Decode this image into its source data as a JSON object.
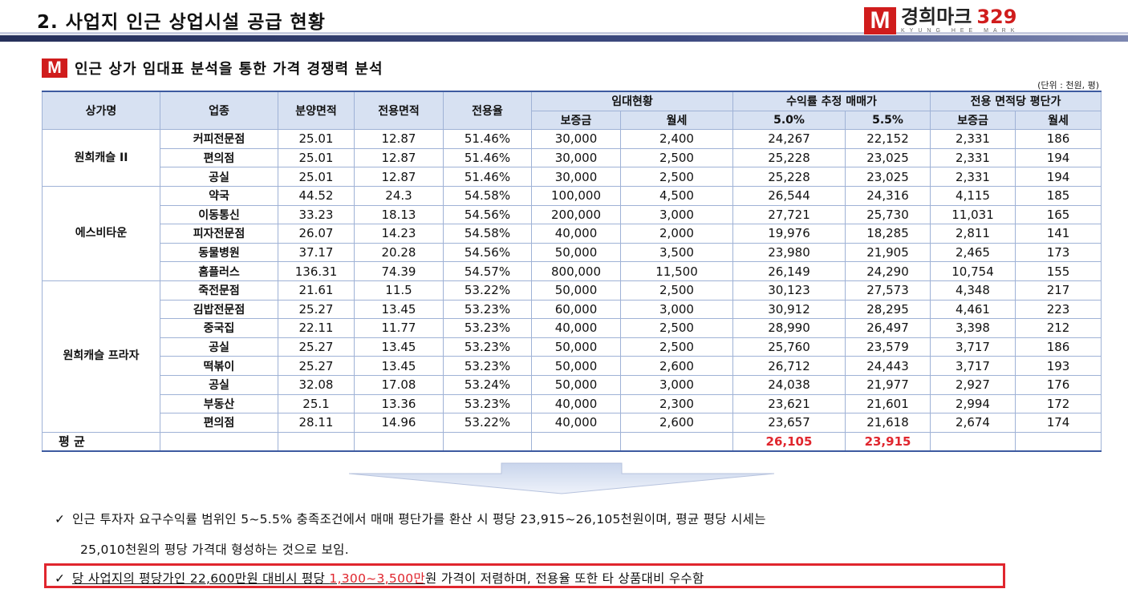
{
  "header": {
    "title": "2. 사업지 인근 상업시설 공급 현황",
    "logo_mark": "M",
    "logo_name": "경희마크",
    "logo_number": "329",
    "logo_sub": "KYUNG HEE MARK"
  },
  "section": {
    "mark": "M",
    "title": "인근 상가 임대표 분석을 통한 가격 경쟁력 분석",
    "unit": "(단위 : 천원, 평)"
  },
  "table": {
    "headers": {
      "store": "상가명",
      "business": "업종",
      "sale_area": "분양면적",
      "exclusive_area": "전용면적",
      "exclusive_rate": "전용율",
      "lease_status": "임대현황",
      "deposit": "보증금",
      "monthly_rent": "월세",
      "estimated_price": "수익률 추정 매매가",
      "rate_5_0": "5.0%",
      "rate_5_5": "5.5%",
      "unit_price": "전용 면적당 평단가",
      "unit_deposit": "보증금",
      "unit_rent": "월세"
    },
    "groups": [
      {
        "name": "원희캐슬 II",
        "rows": [
          [
            "커피전문점",
            "25.01",
            "12.87",
            "51.46%",
            "30,000",
            "2,400",
            "24,267",
            "22,152",
            "2,331",
            "186"
          ],
          [
            "편의점",
            "25.01",
            "12.87",
            "51.46%",
            "30,000",
            "2,500",
            "25,228",
            "23,025",
            "2,331",
            "194"
          ],
          [
            "공실",
            "25.01",
            "12.87",
            "51.46%",
            "30,000",
            "2,500",
            "25,228",
            "23,025",
            "2,331",
            "194"
          ]
        ]
      },
      {
        "name": "에스비타운",
        "rows": [
          [
            "약국",
            "44.52",
            "24.3",
            "54.58%",
            "100,000",
            "4,500",
            "26,544",
            "24,316",
            "4,115",
            "185"
          ],
          [
            "이동통신",
            "33.23",
            "18.13",
            "54.56%",
            "200,000",
            "3,000",
            "27,721",
            "25,730",
            "11,031",
            "165"
          ],
          [
            "피자전문점",
            "26.07",
            "14.23",
            "54.58%",
            "40,000",
            "2,000",
            "19,976",
            "18,285",
            "2,811",
            "141"
          ],
          [
            "동물병원",
            "37.17",
            "20.28",
            "54.56%",
            "50,000",
            "3,500",
            "23,980",
            "21,905",
            "2,465",
            "173"
          ],
          [
            "홈플러스",
            "136.31",
            "74.39",
            "54.57%",
            "800,000",
            "11,500",
            "26,149",
            "24,290",
            "10,754",
            "155"
          ]
        ]
      },
      {
        "name": "원희캐슬 프라자",
        "rows": [
          [
            "죽전문점",
            "21.61",
            "11.5",
            "53.22%",
            "50,000",
            "2,500",
            "30,123",
            "27,573",
            "4,348",
            "217"
          ],
          [
            "김밥전문점",
            "25.27",
            "13.45",
            "53.23%",
            "60,000",
            "3,000",
            "30,912",
            "28,295",
            "4,461",
            "223"
          ],
          [
            "중국집",
            "22.11",
            "11.77",
            "53.23%",
            "40,000",
            "2,500",
            "28,990",
            "26,497",
            "3,398",
            "212"
          ],
          [
            "공실",
            "25.27",
            "13.45",
            "53.23%",
            "50,000",
            "2,500",
            "25,760",
            "23,579",
            "3,717",
            "186"
          ],
          [
            "떡볶이",
            "25.27",
            "13.45",
            "53.23%",
            "50,000",
            "2,600",
            "26,712",
            "24,443",
            "3,717",
            "193"
          ],
          [
            "공실",
            "32.08",
            "17.08",
            "53.24%",
            "50,000",
            "3,000",
            "24,038",
            "21,977",
            "2,927",
            "176"
          ],
          [
            "부동산",
            "25.1",
            "13.36",
            "53.23%",
            "40,000",
            "2,300",
            "23,621",
            "21,601",
            "2,994",
            "172"
          ],
          [
            "편의점",
            "28.11",
            "14.96",
            "53.22%",
            "40,000",
            "2,600",
            "23,657",
            "21,618",
            "2,674",
            "174"
          ]
        ]
      }
    ],
    "average": {
      "label": "평    균",
      "rate_5_0": "26,105",
      "rate_5_5": "23,915"
    }
  },
  "notes": {
    "check": "✓",
    "line1": "인근 투자자 요구수익률 범위인 5~5.5% 충족조건에서 매매 평단가를 환산 시 평당 23,915~26,105천원이며, 평균 평당 시세는",
    "line2": "25,010천원의 평당 가격대 형성하는 것으로 보임.",
    "line3_prefix": "당 사업지의 평당가인 22,600만원 대비시 평당 ",
    "line3_highlight": "1,300~3,500만",
    "line3_suffix": "원 가격이 저렴하며, 전용율 또한 타 상품대비 우수함"
  },
  "colors": {
    "accent_red": "#e0262e",
    "header_blue": "#d7e1f2",
    "border_blue": "#9fb2d6"
  }
}
